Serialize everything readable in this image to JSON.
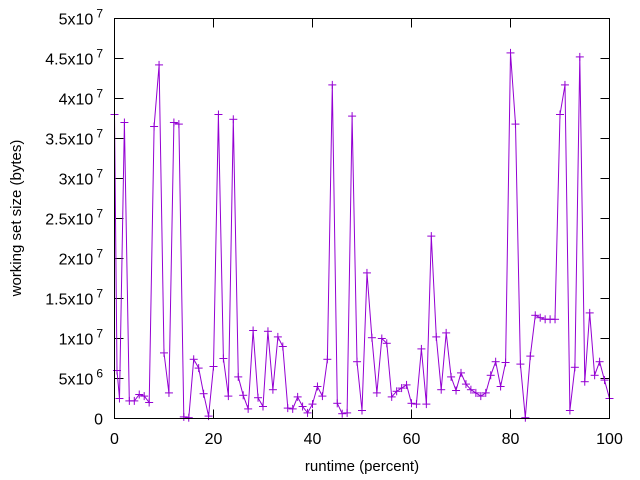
{
  "chart_data": {
    "type": "line",
    "title": "",
    "xlabel": "runtime (percent)",
    "ylabel": "working set size (bytes)",
    "xlim": [
      0,
      100
    ],
    "ylim": [
      0,
      50000000
    ],
    "grid": false,
    "legend": "none",
    "x_ticks": [
      {
        "value": 0,
        "label": "0"
      },
      {
        "value": 20,
        "label": "20"
      },
      {
        "value": 40,
        "label": "40"
      },
      {
        "value": 60,
        "label": "60"
      },
      {
        "value": 80,
        "label": "80"
      },
      {
        "value": 100,
        "label": "100"
      }
    ],
    "y_ticks": [
      {
        "value": 0,
        "mantissa": "0",
        "exp": ""
      },
      {
        "value": 5000000,
        "mantissa": "5x10",
        "exp": "6"
      },
      {
        "value": 10000000,
        "mantissa": "1x10",
        "exp": "7"
      },
      {
        "value": 15000000,
        "mantissa": "1.5x10",
        "exp": "7"
      },
      {
        "value": 20000000,
        "mantissa": "2x10",
        "exp": "7"
      },
      {
        "value": 25000000,
        "mantissa": "2.5x10",
        "exp": "7"
      },
      {
        "value": 30000000,
        "mantissa": "3x10",
        "exp": "7"
      },
      {
        "value": 35000000,
        "mantissa": "3.5x10",
        "exp": "7"
      },
      {
        "value": 40000000,
        "mantissa": "4x10",
        "exp": "7"
      },
      {
        "value": 45000000,
        "mantissa": "4.5x10",
        "exp": "7"
      },
      {
        "value": 50000000,
        "mantissa": "5x10",
        "exp": "7"
      }
    ],
    "color": "#9400d3",
    "series": [
      {
        "x": [
          0,
          0.5,
          1,
          2,
          3,
          4,
          5,
          6,
          7,
          8,
          9,
          10,
          11,
          12,
          13,
          14,
          15,
          16,
          17,
          18,
          19,
          20,
          21,
          22,
          23,
          24,
          25,
          26,
          27,
          28,
          29,
          30,
          31,
          32,
          33,
          34,
          35,
          36,
          37,
          38,
          39,
          40,
          41,
          42,
          43,
          44,
          45,
          46,
          47,
          48,
          49,
          50,
          51,
          52,
          53,
          54,
          55,
          56,
          57,
          58,
          59,
          60,
          61,
          62,
          63,
          64,
          65,
          66,
          67,
          68,
          69,
          70,
          71,
          72,
          73,
          74,
          75,
          76,
          77,
          78,
          79,
          80,
          81,
          82,
          83,
          84,
          85,
          86,
          87,
          88,
          89,
          90,
          91,
          92,
          93,
          94,
          95,
          96,
          97,
          98,
          99,
          100
        ],
        "y": [
          38000000,
          6000000,
          2500000,
          37000000,
          2200000,
          2200000,
          3000000,
          2800000,
          2000000,
          36500000,
          44200000,
          8200000,
          3200000,
          37000000,
          36800000,
          200000,
          100000,
          7400000,
          6300000,
          3100000,
          300000,
          6500000,
          38000000,
          7500000,
          2800000,
          37400000,
          5200000,
          2900000,
          1200000,
          11000000,
          2600000,
          1500000,
          10900000,
          3600000,
          10200000,
          9000000,
          1300000,
          1200000,
          2700000,
          1500000,
          700000,
          1800000,
          4000000,
          2800000,
          7400000,
          41700000,
          1900000,
          600000,
          700000,
          37800000,
          7100000,
          1000000,
          18200000,
          10100000,
          3200000,
          10000000,
          9400000,
          2700000,
          3400000,
          3800000,
          4200000,
          1900000,
          1800000,
          8700000,
          1800000,
          22800000,
          10200000,
          3600000,
          10700000,
          5200000,
          3500000,
          5700000,
          4300000,
          3600000,
          3200000,
          2800000,
          3200000,
          5400000,
          7100000,
          4000000,
          7000000,
          45700000,
          36800000,
          6800000,
          100000,
          7800000,
          12900000,
          12600000,
          12400000,
          12400000,
          12400000,
          38000000,
          41700000,
          1000000,
          6400000,
          45200000,
          4600000,
          13200000,
          5400000,
          7100000,
          4800000,
          2500000
        ]
      }
    ]
  }
}
